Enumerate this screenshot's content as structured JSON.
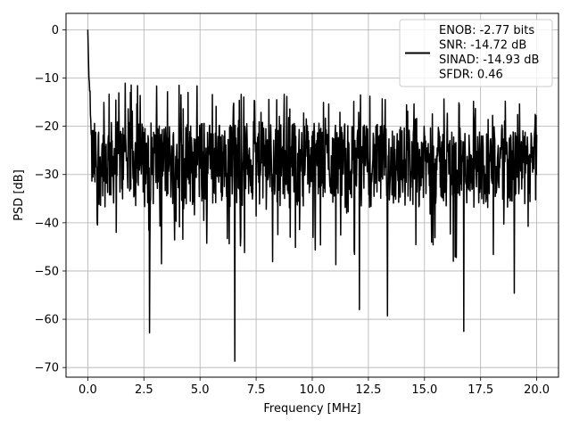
{
  "chart_data": {
    "type": "line",
    "title": "",
    "xlabel": "Frequency [MHz]",
    "ylabel": "PSD [dB]",
    "xlim": [
      -0.97,
      20.97
    ],
    "ylim": [
      -72.0,
      3.4
    ],
    "xticks": [
      0.0,
      2.5,
      5.0,
      7.5,
      10.0,
      12.5,
      15.0,
      17.5,
      20.0
    ],
    "xtick_labels": [
      "0.0",
      "2.5",
      "5.0",
      "7.5",
      "10.0",
      "12.5",
      "15.0",
      "17.5",
      "20.0"
    ],
    "yticks": [
      0,
      -10,
      -20,
      -30,
      -40,
      -50,
      -60,
      -70
    ],
    "ytick_labels": [
      "0",
      "−10",
      "−20",
      "−30",
      "−40",
      "−50",
      "−60",
      "−70"
    ],
    "grid": true,
    "legend_position": "top-right",
    "legend_lines": [
      "ENOB: -2.77 bits",
      "SNR: -14.72 dB",
      "SINAD: -14.93 dB",
      "SFDR: 0.46"
    ],
    "series_color": "#000000",
    "grid_color": "#b0b0b0",
    "notable_points": [
      {
        "x": 0.0,
        "y": 0.0
      },
      {
        "x": 2.75,
        "y": -62.8
      },
      {
        "x": 6.55,
        "y": -68.7
      },
      {
        "x": 12.1,
        "y": -58.0
      },
      {
        "x": 13.35,
        "y": -59.3
      },
      {
        "x": 16.75,
        "y": -62.5
      },
      {
        "x": 19.0,
        "y": -54.6
      }
    ],
    "noise_band": {
      "x_start": 0.0,
      "x_end": 20.0,
      "typical_low_db": -37,
      "typical_high_db": -19
    }
  }
}
